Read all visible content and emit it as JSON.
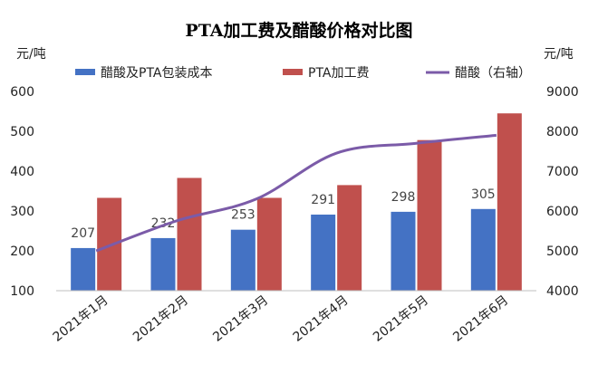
{
  "chart_data": {
    "type": "bar",
    "title": "PTA加工费及醋酸价格对比图",
    "left_unit": "元/吨",
    "right_unit": "元/吨",
    "categories": [
      "2021年1月",
      "2021年2月",
      "2021年3月",
      "2021年4月",
      "2021年5月",
      "2021年6月"
    ],
    "series": [
      {
        "name": "醋酸及PTA包装成本",
        "kind": "bar",
        "axis": "left",
        "color": "#4472c4",
        "values": [
          207,
          232,
          253,
          291,
          298,
          305
        ],
        "labels": [
          "207",
          "232",
          "253",
          "291",
          "298",
          "305"
        ]
      },
      {
        "name": "PTA加工费",
        "kind": "bar",
        "axis": "left",
        "color": "#c0504d",
        "values": [
          333,
          383,
          333,
          365,
          478,
          545
        ]
      },
      {
        "name": "醋酸（右轴）",
        "kind": "line",
        "axis": "right",
        "color": "#7b5ba8",
        "values": [
          5000,
          5750,
          6300,
          7450,
          7700,
          7900
        ]
      }
    ],
    "left_axis": {
      "min": 100,
      "max": 600,
      "ticks": [
        100,
        200,
        300,
        400,
        500,
        600
      ]
    },
    "right_axis": {
      "min": 4000,
      "max": 9000,
      "ticks": [
        4000,
        5000,
        6000,
        7000,
        8000,
        9000
      ]
    },
    "legend_position": "top"
  }
}
